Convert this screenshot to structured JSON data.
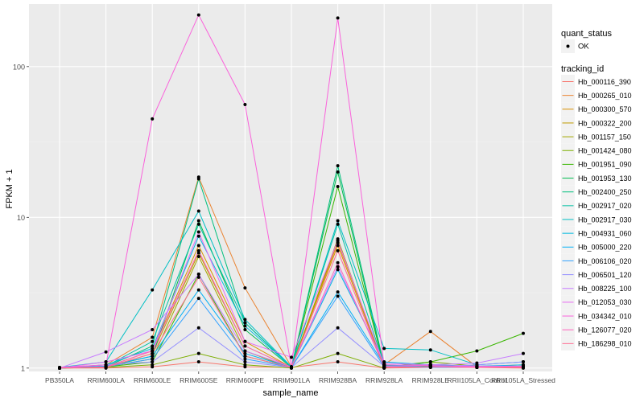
{
  "chart_data": {
    "type": "line",
    "title": "",
    "xlabel": "sample_name",
    "ylabel": "FPKM + 1",
    "y_scale": "log10",
    "ylim": [
      0.95,
      260
    ],
    "y_ticks": [
      1,
      10,
      100
    ],
    "y_tick_labels": [
      "1",
      "10",
      "100"
    ],
    "categories": [
      "PB350LA",
      "RRIM600LA",
      "RRIM600LE",
      "RRIM600SE",
      "RRIM600PE",
      "RRIM901LA",
      "RRIM928BA",
      "RRIM928LA",
      "RRIM928LE",
      "RRII105LA_Control",
      "RRII105LA_Stressed"
    ],
    "grid": true,
    "legend_position": "right",
    "point_legend": {
      "title": "quant_status",
      "entries": [
        "OK"
      ]
    },
    "line_legend_title": "tracking_id",
    "series": [
      {
        "name": "Hb_000116_390",
        "color": "#F8766D",
        "values": [
          1.0,
          1.0,
          1.02,
          1.1,
          1.02,
          1.01,
          1.1,
          1.0,
          1.01,
          1.01,
          1.0
        ]
      },
      {
        "name": "Hb_000265_010",
        "color": "#EA8331",
        "values": [
          1.01,
          1.05,
          1.6,
          18.5,
          3.4,
          1.02,
          6.8,
          1.05,
          1.75,
          1.02,
          1.05
        ]
      },
      {
        "name": "Hb_000300_570",
        "color": "#D89000",
        "values": [
          1.0,
          1.02,
          1.3,
          6.5,
          1.5,
          1.01,
          6.5,
          1.02,
          1.05,
          1.01,
          1.02
        ]
      },
      {
        "name": "Hb_000322_200",
        "color": "#C09B00",
        "values": [
          1.0,
          1.01,
          1.25,
          5.8,
          1.4,
          1.01,
          7.0,
          1.01,
          1.04,
          1.01,
          1.02
        ]
      },
      {
        "name": "Hb_001157_150",
        "color": "#A3A500",
        "values": [
          1.0,
          1.02,
          1.15,
          5.5,
          1.3,
          1.0,
          7.2,
          1.02,
          1.06,
          1.01,
          1.03
        ]
      },
      {
        "name": "Hb_001424_080",
        "color": "#7CAE00",
        "values": [
          1.0,
          1.01,
          1.05,
          1.25,
          1.05,
          1.0,
          1.25,
          1.0,
          1.1,
          1.03,
          1.02
        ]
      },
      {
        "name": "Hb_001951_090",
        "color": "#39B600",
        "values": [
          1.0,
          1.02,
          1.1,
          4.2,
          1.2,
          1.01,
          16.0,
          1.02,
          1.1,
          1.3,
          1.7
        ]
      },
      {
        "name": "Hb_001953_130",
        "color": "#00BB4E",
        "values": [
          1.0,
          1.02,
          1.2,
          9.5,
          1.8,
          1.01,
          20.0,
          1.02,
          1.03,
          1.02,
          1.03
        ]
      },
      {
        "name": "Hb_002400_250",
        "color": "#00BF7D",
        "values": [
          1.0,
          1.02,
          1.4,
          18.0,
          2.0,
          1.01,
          22.0,
          1.04,
          1.02,
          1.01,
          1.02
        ]
      },
      {
        "name": "Hb_002917_020",
        "color": "#00C1A3",
        "values": [
          1.0,
          1.03,
          1.5,
          9.0,
          2.0,
          1.02,
          9.0,
          1.05,
          1.04,
          1.02,
          1.03
        ]
      },
      {
        "name": "Hb_002917_030",
        "color": "#00BFC4",
        "values": [
          1.01,
          1.1,
          3.3,
          11.0,
          2.1,
          1.02,
          9.5,
          1.35,
          1.32,
          1.05,
          1.1
        ]
      },
      {
        "name": "Hb_004931_060",
        "color": "#00BAE0",
        "values": [
          1.0,
          1.05,
          1.35,
          7.5,
          1.9,
          1.02,
          4.5,
          1.1,
          1.05,
          1.03,
          1.05
        ]
      },
      {
        "name": "Hb_005000_220",
        "color": "#00B0F6",
        "values": [
          1.0,
          1.03,
          1.2,
          3.3,
          1.25,
          1.01,
          3.2,
          1.05,
          1.02,
          1.01,
          1.03
        ]
      },
      {
        "name": "Hb_006106_020",
        "color": "#35A2FF",
        "values": [
          1.0,
          1.02,
          1.15,
          2.9,
          1.15,
          1.01,
          3.0,
          1.02,
          1.01,
          1.01,
          1.02
        ]
      },
      {
        "name": "Hb_006501_120",
        "color": "#9590FF",
        "values": [
          1.0,
          1.05,
          1.1,
          1.85,
          1.1,
          1.01,
          1.85,
          1.03,
          1.02,
          1.05,
          1.1
        ]
      },
      {
        "name": "Hb_008225_100",
        "color": "#C77CFF",
        "values": [
          1.0,
          1.28,
          1.8,
          4.2,
          1.3,
          1.02,
          4.7,
          1.08,
          1.05,
          1.08,
          1.25
        ]
      },
      {
        "name": "Hb_012053_030",
        "color": "#E76BF3",
        "values": [
          1.0,
          1.1,
          1.3,
          8.0,
          1.5,
          1.18,
          7.0,
          1.05,
          1.04,
          1.03,
          1.03
        ]
      },
      {
        "name": "Hb_034342_010",
        "color": "#FA62DB",
        "values": [
          1.01,
          1.05,
          45.0,
          220.0,
          56.0,
          1.02,
          210.0,
          1.05,
          1.04,
          1.02,
          1.02
        ]
      },
      {
        "name": "Hb_126077_020",
        "color": "#FF62BC",
        "values": [
          1.0,
          1.02,
          1.3,
          6.0,
          1.4,
          1.01,
          5.0,
          1.02,
          1.02,
          1.01,
          1.02
        ]
      },
      {
        "name": "Hb_186298_010",
        "color": "#FF6C91",
        "values": [
          1.0,
          1.01,
          1.25,
          4.0,
          1.2,
          1.01,
          6.0,
          1.01,
          1.02,
          1.01,
          1.01
        ]
      }
    ]
  }
}
